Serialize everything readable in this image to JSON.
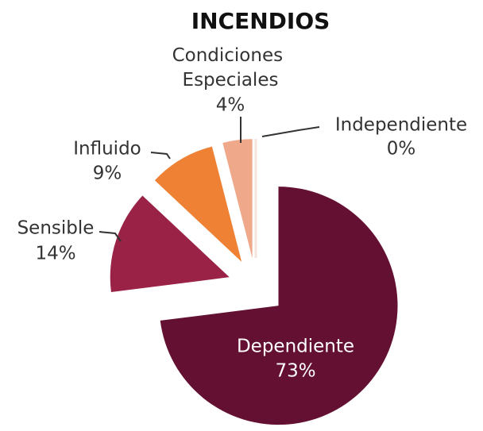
{
  "chart_data": {
    "type": "pie",
    "title": "INCENDIOS",
    "categories": [
      "Dependiente",
      "Sensible",
      "Influido",
      "Condiciones Especiales",
      "Independiente"
    ],
    "values": [
      73,
      14,
      9,
      4,
      0
    ],
    "value_labels": [
      "73%",
      "14%",
      "9%",
      "4%",
      "0%"
    ],
    "colors": [
      "#641032",
      "#9b2247",
      "#ee8134",
      "#f0a88a",
      "#f4e4dc"
    ]
  }
}
